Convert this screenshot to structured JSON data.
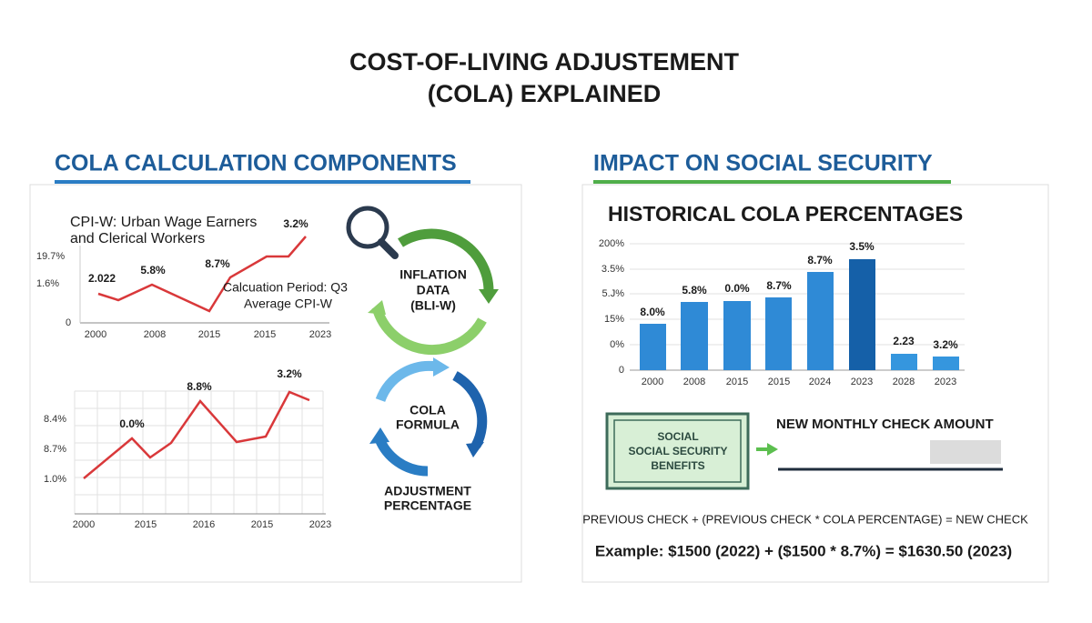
{
  "header": {
    "title_lines": [
      "COST-OF-LIVING ADJUSTEMENT",
      "(COLA) EXPLAINED"
    ]
  },
  "left_panel": {
    "heading": "COLA CALCULATION COMPONENTS",
    "top_chart": {
      "caption_lines": [
        "CPI-W: Urban Wage Earners",
        "and Clerical Workers"
      ],
      "y_labels": [
        "19.7%",
        "1.6%",
        "0"
      ],
      "x_labels": [
        "2000",
        "2008",
        "2015",
        "2015",
        "2023"
      ],
      "point_labels": [
        "2.022",
        "5.8%",
        "8.7%",
        "3.2%"
      ],
      "note_lines": [
        "Calcuation Period: Q3",
        "Average CPI-W"
      ]
    },
    "bottom_chart": {
      "y_labels": [
        "8.4%",
        "8.7%",
        "1.0%"
      ],
      "x_labels": [
        "2000",
        "2015",
        "2016",
        "2015",
        "2023"
      ],
      "point_labels": [
        "0.0%",
        "8.8%",
        "3.2%"
      ]
    },
    "cycle_top": {
      "lines": [
        "INFLATION",
        "DATA",
        "(BLI-W)"
      ]
    },
    "cycle_bottom": {
      "lines": [
        "COLA",
        "FORMULA"
      ],
      "caption_lines": [
        "ADJUSTMENT",
        "PERCENTAGE"
      ]
    }
  },
  "right_panel": {
    "heading": "IMPACT ON SOCIAL SECURITY",
    "chart": {
      "title": "HISTORICAL COLA PERCENTAGES",
      "y_labels": [
        "200%",
        "3.5%",
        "5.J%",
        "15%",
        "0%",
        "0"
      ],
      "x_labels": [
        "2000",
        "2008",
        "2015",
        "2015",
        "2024",
        "2023",
        "2028",
        "2023"
      ],
      "bar_labels": [
        "8.0%",
        "5.8%",
        "0.0%",
        "8.7%",
        "8.7%",
        "3.5%",
        "2.23",
        "3.2%"
      ]
    },
    "certificate_lines": [
      "SOCIAL",
      "SOCIAL SECURITY",
      "BENEFITS"
    ],
    "new_check_label": "NEW MONTHLY CHECK AMOUNT",
    "formula": "PREVIOUS CHECK + (PREVIOUS CHECK * COLA PERCENTAGE) = NEW CHECK",
    "example": "Example: $1500 (2022) + ($1500 * 8.7%) = $1630.50 (2023)"
  }
}
